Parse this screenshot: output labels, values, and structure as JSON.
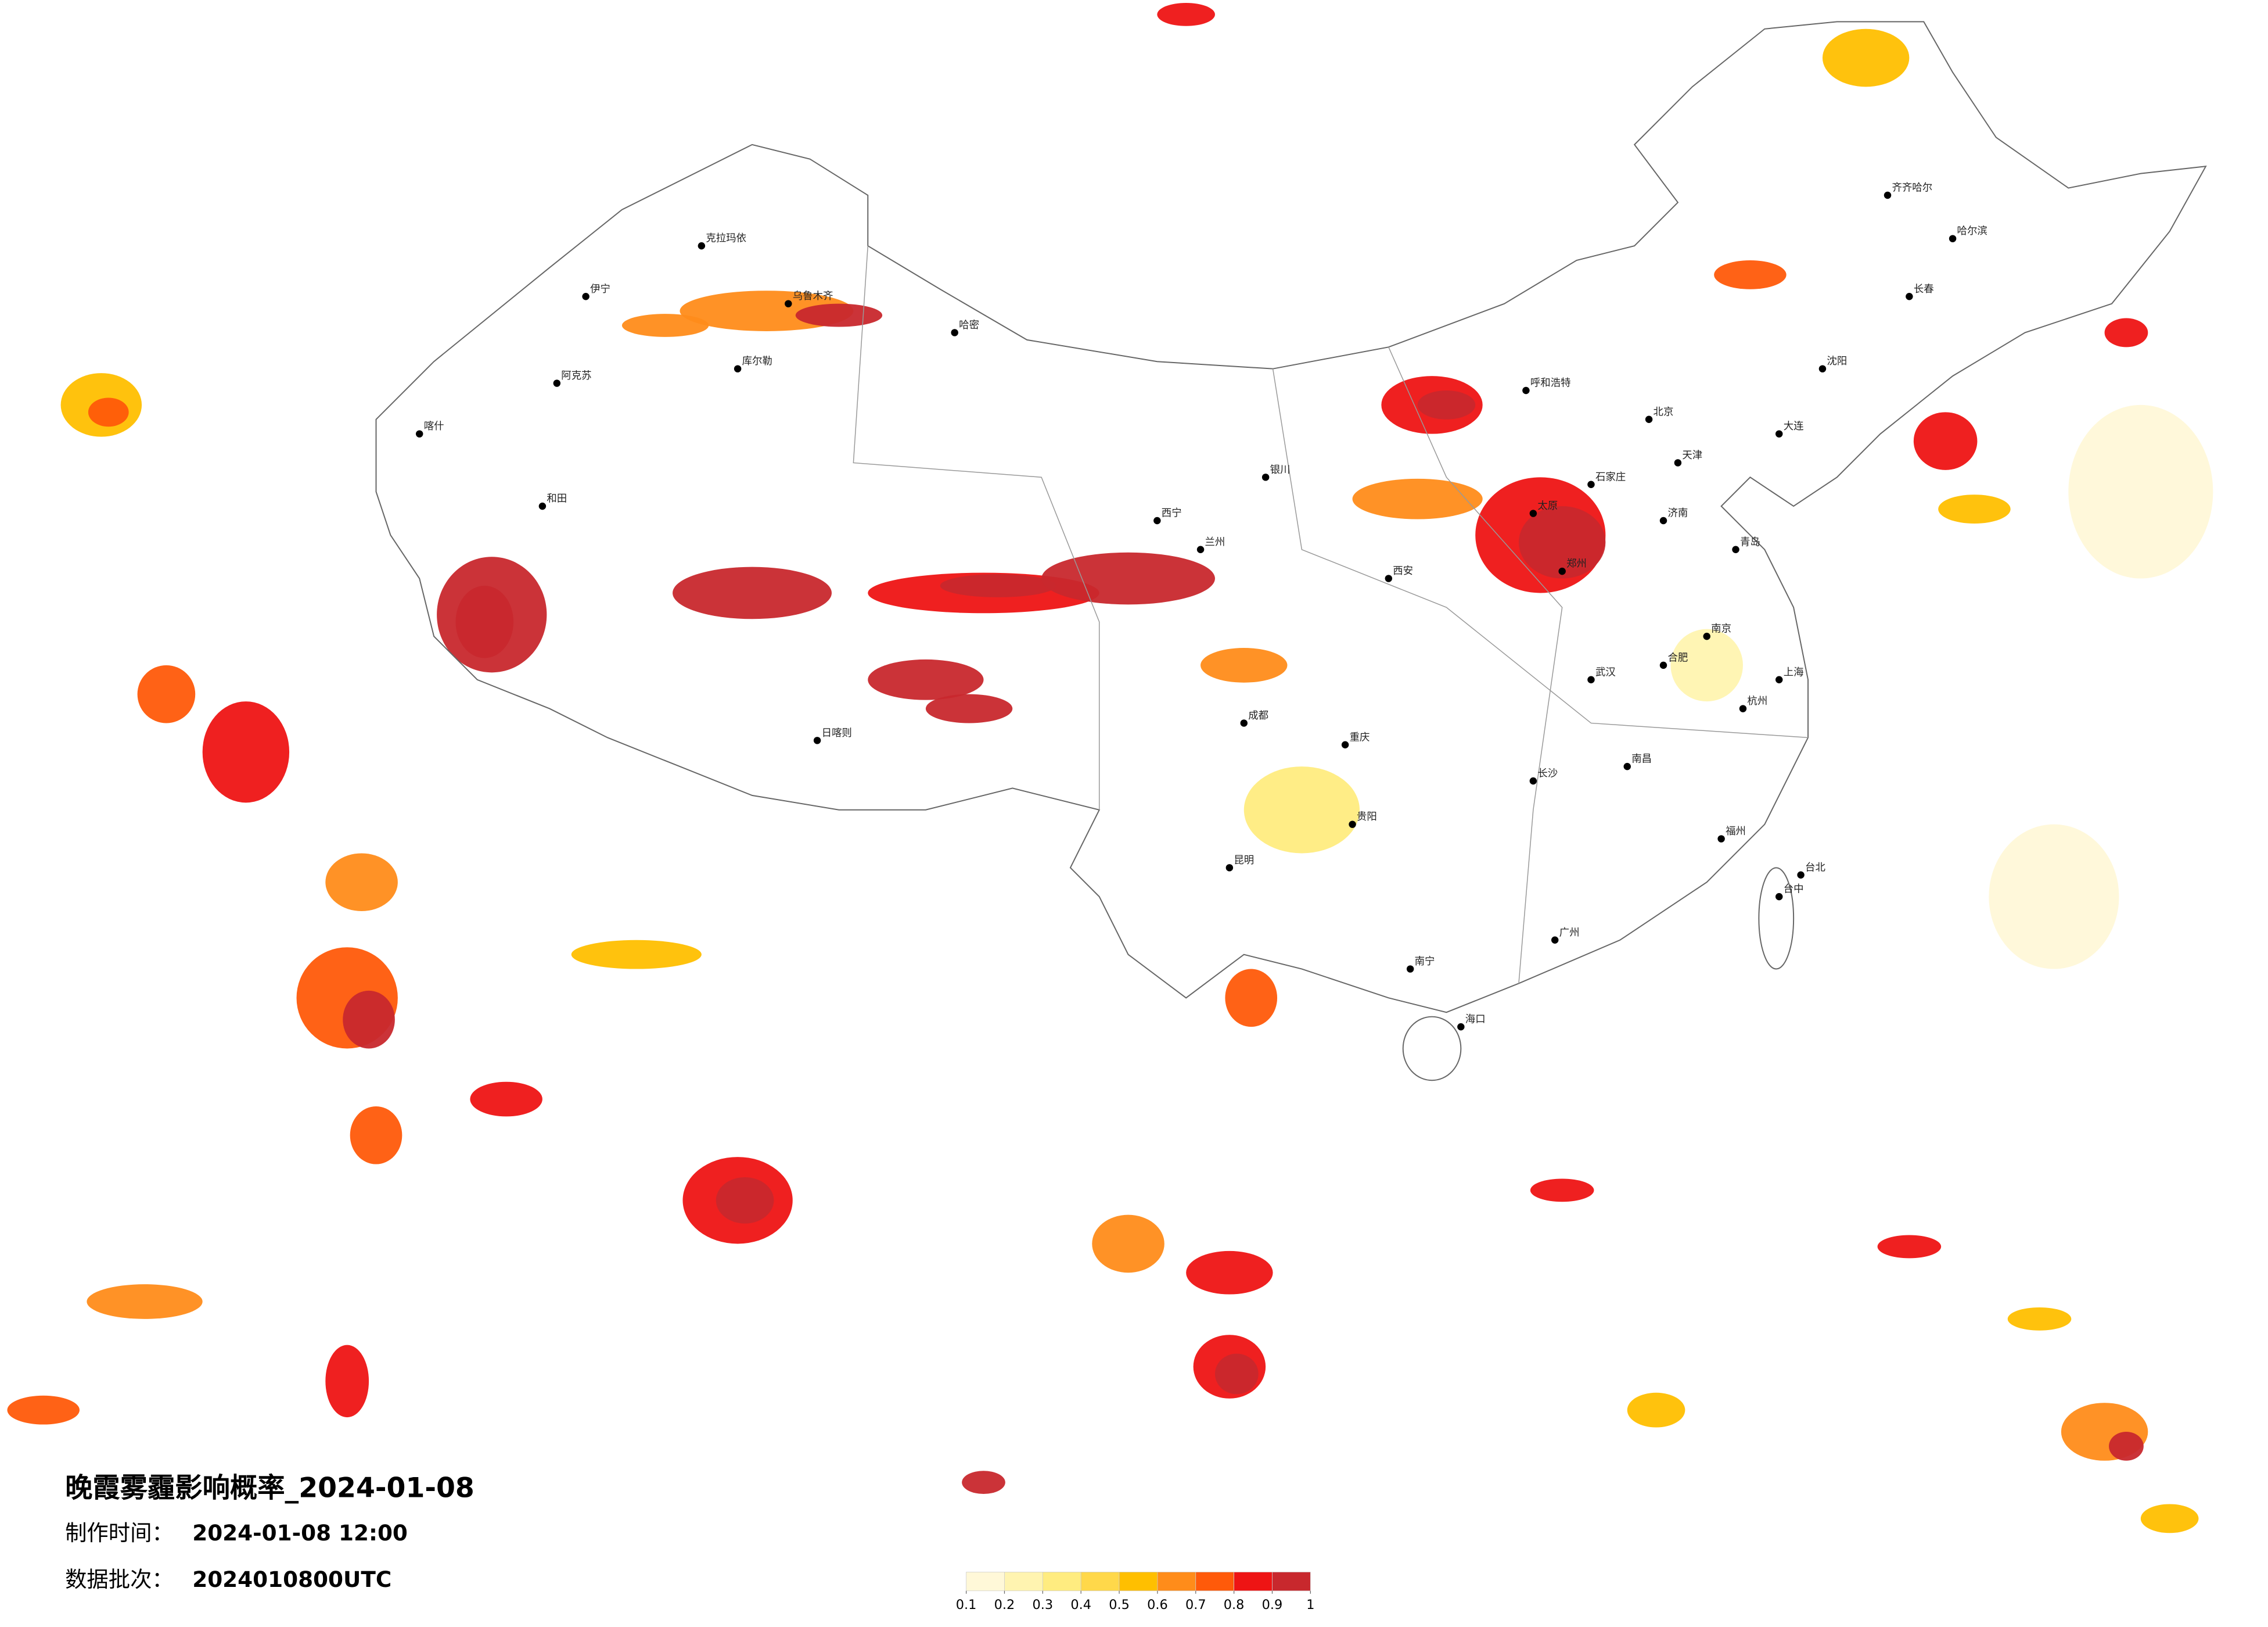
{
  "header": {
    "title": "晚霞雾霾影响概率_2024-01-08",
    "made_label": "制作时间：",
    "made_value": "2024-01-08 12:00",
    "batch_label": "数据批次：",
    "batch_value": "2024010800UTC"
  },
  "colorbar": {
    "ticks": [
      0.1,
      0.2,
      0.3,
      0.4,
      0.5,
      0.6,
      0.7,
      0.8,
      0.9,
      1
    ],
    "colors": [
      "#fff8d8",
      "#fff4b0",
      "#ffec80",
      "#ffd84a",
      "#ffbf00",
      "#ff8c1a",
      "#ff5a0a",
      "#ee1414",
      "#c8282d"
    ]
  },
  "cities": [
    "乌鲁木齐",
    "克拉玛依",
    "伊宁",
    "哈密",
    "库尔勒",
    "阿克苏",
    "喀什",
    "和田",
    "日喀则",
    "西宁",
    "兰州",
    "银川",
    "呼和浩特",
    "北京",
    "天津",
    "石家庄",
    "太原",
    "济南",
    "郑州",
    "西安",
    "成都",
    "重庆",
    "武汉",
    "南京",
    "上海",
    "杭州",
    "长沙",
    "南昌",
    "福州",
    "广州",
    "南宁",
    "贵阳",
    "昆明",
    "海口",
    "哈尔滨",
    "长春",
    "沈阳",
    "大连",
    "齐齐哈尔",
    "台北",
    "台中",
    "合肥",
    "青岛"
  ]
}
